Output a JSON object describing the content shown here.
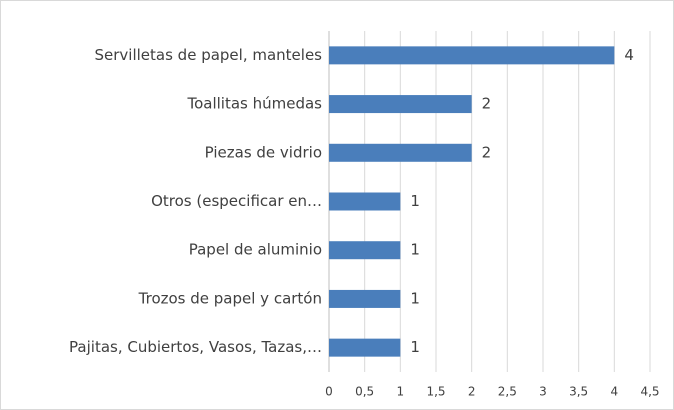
{
  "chart_data": {
    "type": "bar",
    "orientation": "horizontal",
    "categories": [
      "Servilletas de papel, manteles",
      "Toallitas húmedas",
      "Piezas de vidrio",
      "Otros (especificar en…",
      "Papel de aluminio",
      "Trozos de papel y cartón",
      "Pajitas, Cubiertos, Vasos, Tazas,…"
    ],
    "values": [
      4,
      2,
      2,
      1,
      1,
      1,
      1
    ],
    "color": "#4a7ebb",
    "xlim": [
      0,
      4.5
    ],
    "xticks": [
      0,
      {
        "value": 0.5,
        "label": "0,5"
      },
      1,
      {
        "value": 1.5,
        "label": "1,5"
      },
      2,
      {
        "value": 2.5,
        "label": "2,5"
      },
      3,
      {
        "value": 3.5,
        "label": "3,5"
      },
      4,
      {
        "value": 4.5,
        "label": "4,5"
      }
    ],
    "grid": true
  }
}
